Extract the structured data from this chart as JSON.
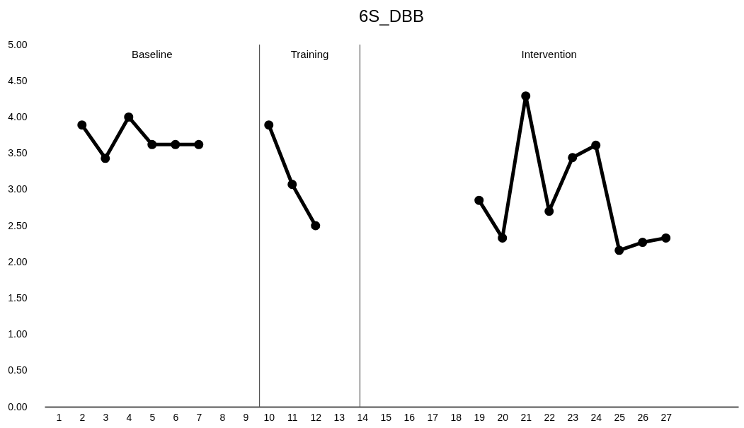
{
  "chart_data": {
    "type": "line",
    "title": "6S_DBB",
    "marker": "circle",
    "grid": false,
    "line_style": "solid",
    "xlim": [
      0.4,
      30.1
    ],
    "xticks": [
      1,
      2,
      3,
      4,
      5,
      6,
      7,
      8,
      9,
      10,
      11,
      12,
      13,
      14,
      15,
      16,
      17,
      18,
      19,
      20,
      21,
      22,
      23,
      24,
      25,
      26,
      27
    ],
    "ylim": [
      0,
      5
    ],
    "yticks": [
      {
        "value": 0,
        "label": "0.00"
      },
      {
        "value": 0.5,
        "label": "0.50"
      },
      {
        "value": 1,
        "label": "1.00"
      },
      {
        "value": 1.5,
        "label": "1.50"
      },
      {
        "value": 2,
        "label": "2.00"
      },
      {
        "value": 2.5,
        "label": "2.50"
      },
      {
        "value": 3,
        "label": "3.00"
      },
      {
        "value": 3.5,
        "label": "3.50"
      },
      {
        "value": 4,
        "label": "4.00"
      },
      {
        "value": 4.5,
        "label": "4.50"
      },
      {
        "value": 5,
        "label": "5.00"
      }
    ],
    "series": [
      {
        "color": "#000000",
        "x": [
          2,
          3,
          4,
          5,
          6,
          7
        ],
        "values": [
          3.89,
          3.43,
          4.0,
          3.62,
          3.62,
          3.62
        ]
      },
      {
        "color": "#000000",
        "x": [
          10,
          11,
          12
        ],
        "values": [
          3.89,
          3.07,
          2.5
        ]
      },
      {
        "color": "#000000",
        "x": [
          19,
          20,
          21,
          22,
          23,
          24,
          25,
          26,
          27
        ],
        "values": [
          2.85,
          2.33,
          4.29,
          2.7,
          3.44,
          3.61,
          2.16,
          2.27,
          2.33
        ]
      }
    ],
    "ref_lines": [
      {
        "axis": "x",
        "value": 9.6,
        "color": "#555555"
      },
      {
        "axis": "x",
        "value": 13.9,
        "color": "#555555"
      }
    ],
    "annotations": [
      "Baseline",
      "Training",
      "Intervention"
    ]
  }
}
